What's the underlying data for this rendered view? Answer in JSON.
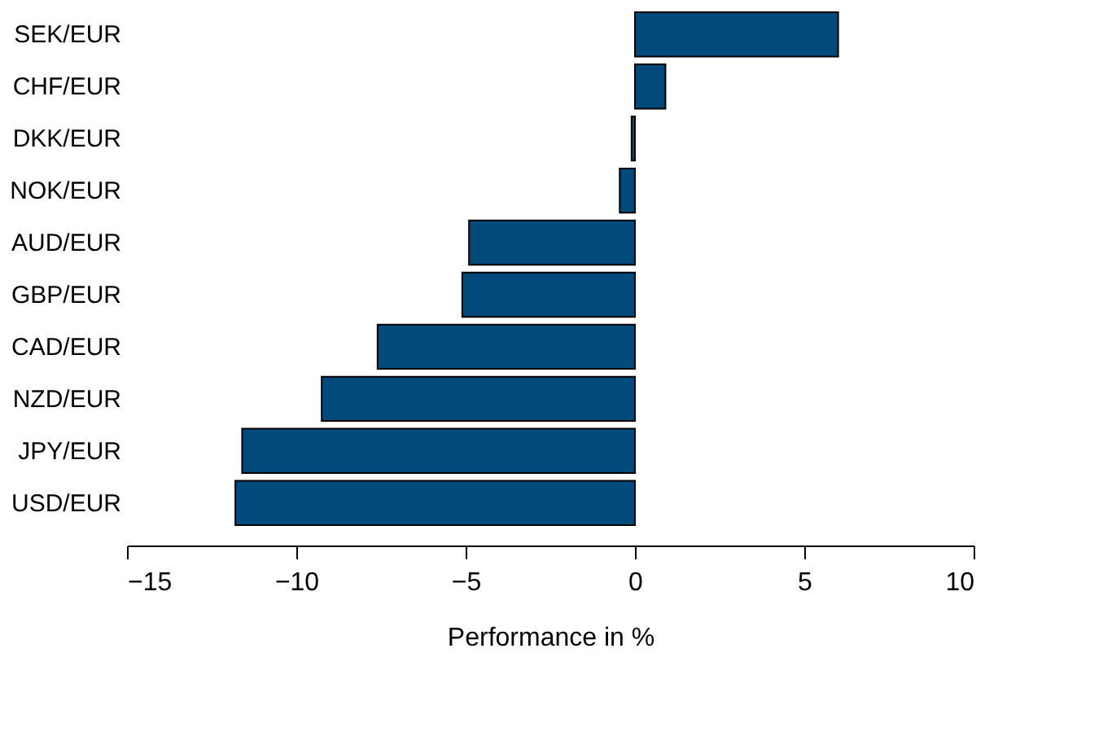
{
  "chart_data": {
    "type": "bar",
    "orientation": "horizontal",
    "xlabel": "Performance in %",
    "categories": [
      "SEK/EUR",
      "CHF/EUR",
      "DKK/EUR",
      "NOK/EUR",
      "AUD/EUR",
      "GBP/EUR",
      "CAD/EUR",
      "NZD/EUR",
      "JPY/EUR",
      "USD/EUR"
    ],
    "values": [
      6.0,
      0.9,
      -0.1,
      -0.45,
      -4.9,
      -5.1,
      -7.6,
      -9.25,
      -11.6,
      -11.8
    ],
    "color": "#004b7c",
    "xlim": [
      -15,
      10
    ],
    "xticks": [
      -15,
      -10,
      -5,
      0,
      5,
      10
    ],
    "grid": false
  }
}
